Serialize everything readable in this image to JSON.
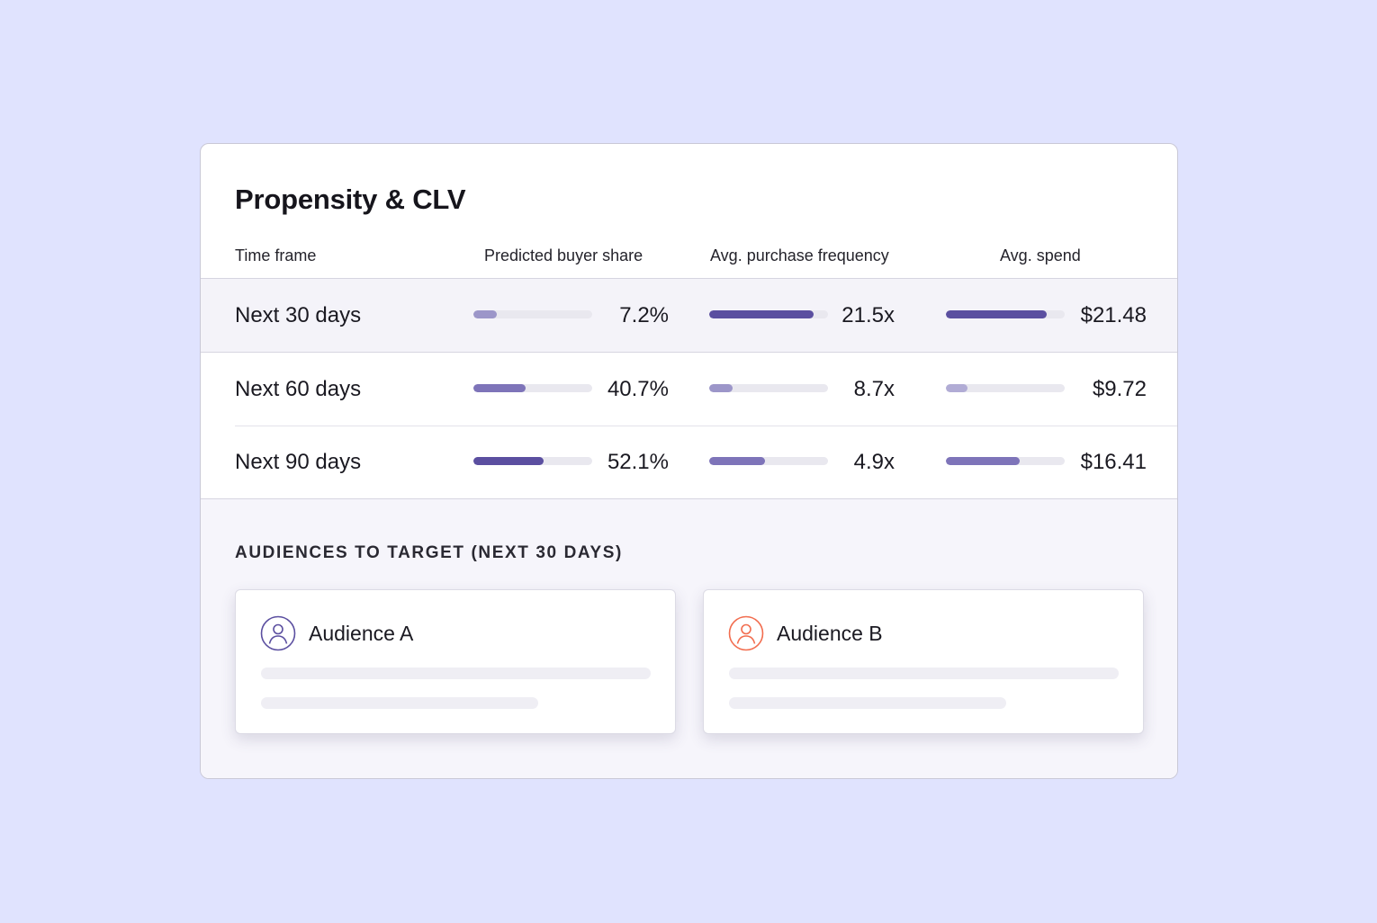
{
  "panel": {
    "title": "Propensity & CLV",
    "columns": {
      "time_frame": "Time frame",
      "buyer_share": "Predicted buyer share",
      "frequency": "Avg. purchase frequency",
      "spend": "Avg. spend"
    },
    "rows": [
      {
        "label": "Next 30 days",
        "buyer_share": "7.2%",
        "frequency": "21.5x",
        "spend": "$21.48",
        "bar_levels": {
          "buyer_share": 0.2,
          "frequency": 0.88,
          "spend": 0.85
        },
        "bar_colors": {
          "buyer_share": "#9c96c9",
          "frequency": "#5b4fa0",
          "spend": "#5b4fa0"
        }
      },
      {
        "label": "Next 60 days",
        "buyer_share": "40.7%",
        "frequency": "8.7x",
        "spend": "$9.72",
        "bar_levels": {
          "buyer_share": 0.44,
          "frequency": 0.2,
          "spend": 0.18
        },
        "bar_colors": {
          "buyer_share": "#7e74b9",
          "frequency": "#9c96c9",
          "spend": "#b1acd5"
        }
      },
      {
        "label": "Next 90 days",
        "buyer_share": "52.1%",
        "frequency": "4.9x",
        "spend": "$16.41",
        "bar_levels": {
          "buyer_share": 0.59,
          "frequency": 0.47,
          "spend": 0.62
        },
        "bar_colors": {
          "buyer_share": "#5b4fa0",
          "frequency": "#7e74b9",
          "spend": "#7e74b9"
        }
      }
    ]
  },
  "audiences": {
    "title": "AUDIENCES TO TARGET (NEXT 30 DAYS)",
    "cards": [
      {
        "name": "Audience A",
        "icon": "user-icon",
        "icon_color": "#5b4fa0"
      },
      {
        "name": "Audience B",
        "icon": "user-icon",
        "icon_color": "#f26d4f"
      }
    ]
  },
  "colors": {
    "background": "#e0e3fe",
    "track": "#e9e8ef",
    "highlight_row": "#f4f3f9"
  }
}
